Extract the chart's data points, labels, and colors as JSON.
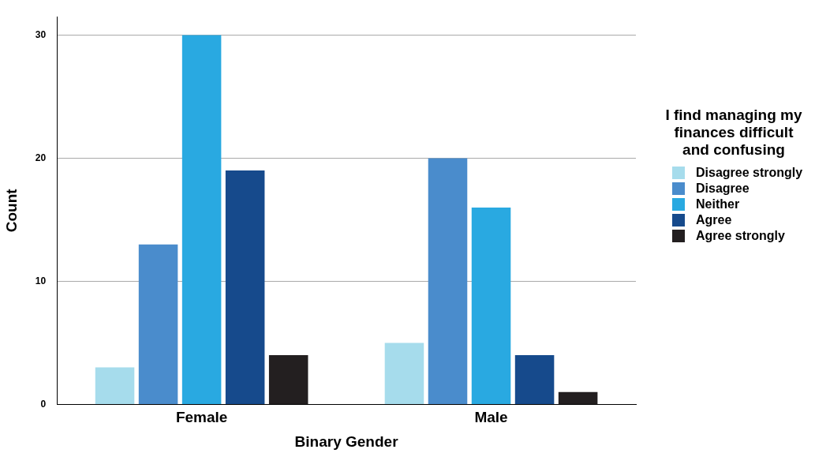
{
  "chart_data": {
    "type": "bar",
    "xlabel": "Binary Gender",
    "ylabel": "Count",
    "legend_title": "I find managing my finances difficult and confusing",
    "categories": [
      "Female",
      "Male"
    ],
    "series": [
      {
        "name": "Disagree strongly",
        "color": "#a6dcec",
        "values": [
          3,
          5
        ]
      },
      {
        "name": "Disagree",
        "color": "#4a8ccc",
        "values": [
          13,
          20
        ]
      },
      {
        "name": "Neither",
        "color": "#29a9e1",
        "values": [
          30,
          16
        ]
      },
      {
        "name": "Agree",
        "color": "#164a8c",
        "values": [
          19,
          4
        ]
      },
      {
        "name": "Agree strongly",
        "color": "#231f20",
        "values": [
          4,
          1
        ]
      }
    ],
    "ylim": [
      0,
      31.5
    ],
    "yticks": [
      0,
      10,
      20,
      30
    ],
    "grid": "y",
    "legend": "right"
  }
}
